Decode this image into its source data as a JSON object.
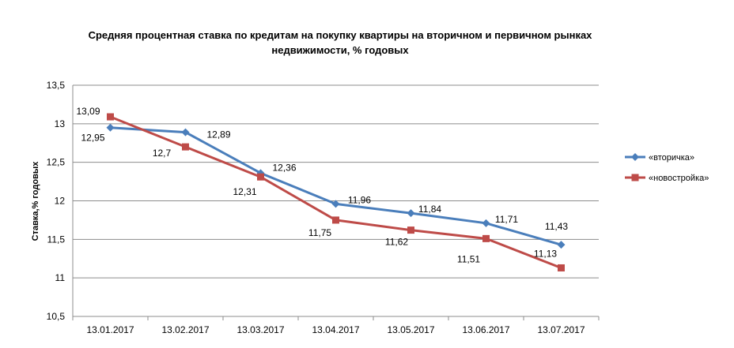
{
  "chart_data": {
    "type": "line",
    "title": "Средняя процентная ставка по кредитам на покупку квартиры на вторичном и первичном рынках недвижимости, % годовых",
    "xlabel": "",
    "ylabel": "Ставка,%  годовых",
    "ylim": [
      10.5,
      13.5
    ],
    "yticks": [
      "10,5",
      "11",
      "11,5",
      "12",
      "12,5",
      "13",
      "13,5"
    ],
    "categories": [
      "13.01.2017",
      "13.02.2017",
      "13.03.2017",
      "13.04.2017",
      "13.05.2017",
      "13.06.2017",
      "13.07.2017"
    ],
    "grid": true,
    "legend_position": "right",
    "series": [
      {
        "name": "«вторичка»",
        "color": "#4a7ebb",
        "marker": "diamond",
        "values": [
          12.95,
          12.89,
          12.36,
          11.96,
          11.84,
          11.71,
          11.43
        ],
        "labels": [
          "12,95",
          "12,89",
          "12,36",
          "11,96",
          "11,84",
          "11,71",
          "11,43"
        ]
      },
      {
        "name": "«новостройка»",
        "color": "#be4b48",
        "marker": "square",
        "values": [
          13.09,
          12.7,
          12.31,
          11.75,
          11.62,
          11.51,
          11.13
        ],
        "labels": [
          "13,09",
          "12,7",
          "12,31",
          "11,75",
          "11,62",
          "11,51",
          "11,13"
        ]
      }
    ]
  }
}
